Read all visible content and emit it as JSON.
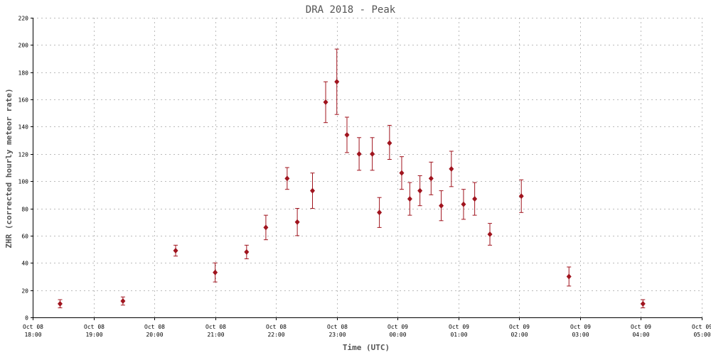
{
  "chart_data": {
    "type": "scatter",
    "title": "DRA 2018 - Peak",
    "xlabel": "Time (UTC)",
    "ylabel": "ZHR (corrected hourly meteor rate)",
    "xlim": [
      "2018-10-08 18:00",
      "2018-10-09 05:00"
    ],
    "ylim": [
      0,
      220
    ],
    "yticks": [
      0,
      20,
      40,
      60,
      80,
      100,
      120,
      140,
      160,
      180,
      200,
      220
    ],
    "xticks": [
      {
        "date": "Oct 08",
        "time": "18:00"
      },
      {
        "date": "Oct 08",
        "time": "19:00"
      },
      {
        "date": "Oct 08",
        "time": "20:00"
      },
      {
        "date": "Oct 08",
        "time": "21:00"
      },
      {
        "date": "Oct 08",
        "time": "22:00"
      },
      {
        "date": "Oct 08",
        "time": "23:00"
      },
      {
        "date": "Oct 09",
        "time": "00:00"
      },
      {
        "date": "Oct 09",
        "time": "01:00"
      },
      {
        "date": "Oct 09",
        "time": "02:00"
      },
      {
        "date": "Oct 09",
        "time": "03:00"
      },
      {
        "date": "Oct 09",
        "time": "04:00"
      },
      {
        "date": "Oct 09",
        "time": "05:00"
      }
    ],
    "grid": true,
    "marker_color": "#a0141e",
    "points": [
      {
        "time": "2018-10-08 18:27",
        "zhr": 10,
        "low": 7,
        "high": 13
      },
      {
        "time": "2018-10-08 19:29",
        "zhr": 12,
        "low": 9,
        "high": 15
      },
      {
        "time": "2018-10-08 20:21",
        "zhr": 49,
        "low": 45,
        "high": 53
      },
      {
        "time": "2018-10-08 21:00",
        "zhr": 33,
        "low": 26,
        "high": 40
      },
      {
        "time": "2018-10-08 21:31",
        "zhr": 48,
        "low": 43,
        "high": 53
      },
      {
        "time": "2018-10-08 21:50",
        "zhr": 66,
        "low": 57,
        "high": 75
      },
      {
        "time": "2018-10-08 22:11",
        "zhr": 102,
        "low": 94,
        "high": 110
      },
      {
        "time": "2018-10-08 22:21",
        "zhr": 70,
        "low": 60,
        "high": 80
      },
      {
        "time": "2018-10-08 22:36",
        "zhr": 93,
        "low": 80,
        "high": 106
      },
      {
        "time": "2018-10-08 22:49",
        "zhr": 158,
        "low": 143,
        "high": 173
      },
      {
        "time": "2018-10-08 23:00",
        "zhr": 173,
        "low": 149,
        "high": 197
      },
      {
        "time": "2018-10-08 23:10",
        "zhr": 134,
        "low": 121,
        "high": 147
      },
      {
        "time": "2018-10-08 23:22",
        "zhr": 120,
        "low": 108,
        "high": 132
      },
      {
        "time": "2018-10-08 23:35",
        "zhr": 120,
        "low": 108,
        "high": 132
      },
      {
        "time": "2018-10-08 23:42",
        "zhr": 77,
        "low": 66,
        "high": 88
      },
      {
        "time": "2018-10-08 23:52",
        "zhr": 128,
        "low": 116,
        "high": 141
      },
      {
        "time": "2018-10-09 00:04",
        "zhr": 106,
        "low": 94,
        "high": 118
      },
      {
        "time": "2018-10-09 00:12",
        "zhr": 87,
        "low": 75,
        "high": 99
      },
      {
        "time": "2018-10-09 00:22",
        "zhr": 93,
        "low": 82,
        "high": 104
      },
      {
        "time": "2018-10-09 00:33",
        "zhr": 102,
        "low": 90,
        "high": 114
      },
      {
        "time": "2018-10-09 00:43",
        "zhr": 82,
        "low": 71,
        "high": 93
      },
      {
        "time": "2018-10-09 00:53",
        "zhr": 109,
        "low": 96,
        "high": 122
      },
      {
        "time": "2018-10-09 01:05",
        "zhr": 83,
        "low": 72,
        "high": 94
      },
      {
        "time": "2018-10-09 01:16",
        "zhr": 87,
        "low": 75,
        "high": 99
      },
      {
        "time": "2018-10-09 01:31",
        "zhr": 61,
        "low": 53,
        "high": 69
      },
      {
        "time": "2018-10-09 02:02",
        "zhr": 89,
        "low": 77,
        "high": 101
      },
      {
        "time": "2018-10-09 02:49",
        "zhr": 30,
        "low": 23,
        "high": 37
      },
      {
        "time": "2018-10-09 04:02",
        "zhr": 10,
        "low": 7,
        "high": 13
      }
    ]
  }
}
